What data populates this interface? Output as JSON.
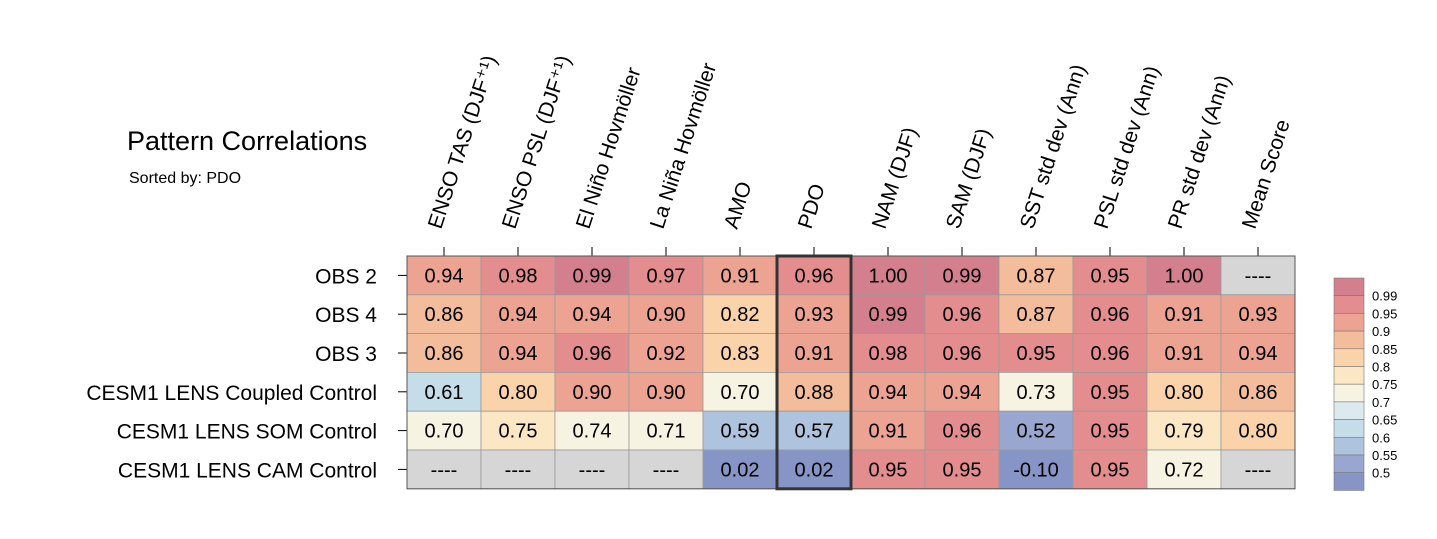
{
  "chart_data": {
    "type": "heatmap",
    "title": "Pattern Correlations",
    "subtitle": "Sorted by: PDO",
    "columns": [
      "ENSO TAS (DJF⁺¹)",
      "ENSO PSL (DJF⁺¹)",
      "El Niño Hovmöller",
      "La Niña Hovmöller",
      "AMO",
      "PDO",
      "NAM (DJF)",
      "SAM (DJF)",
      "SST std dev (Ann)",
      "PSL std dev (Ann)",
      "PR std dev (Ann)",
      "Mean Score"
    ],
    "rows": [
      "OBS 2",
      "OBS 4",
      "OBS 3",
      "CESM1 LENS Coupled Control",
      "CESM1 LENS SOM Control",
      "CESM1 LENS CAM Control"
    ],
    "cell_labels": [
      [
        "0.94",
        "0.98",
        "0.99",
        "0.97",
        "0.91",
        "0.96",
        "1.00",
        "0.99",
        "0.87",
        "0.95",
        "1.00",
        "----"
      ],
      [
        "0.86",
        "0.94",
        "0.94",
        "0.90",
        "0.82",
        "0.93",
        "0.99",
        "0.96",
        "0.87",
        "0.96",
        "0.91",
        "0.93"
      ],
      [
        "0.86",
        "0.94",
        "0.96",
        "0.92",
        "0.83",
        "0.91",
        "0.98",
        "0.96",
        "0.95",
        "0.96",
        "0.91",
        "0.94"
      ],
      [
        "0.61",
        "0.80",
        "0.90",
        "0.90",
        "0.70",
        "0.88",
        "0.94",
        "0.94",
        "0.73",
        "0.95",
        "0.80",
        "0.86"
      ],
      [
        "0.70",
        "0.75",
        "0.74",
        "0.71",
        "0.59",
        "0.57",
        "0.91",
        "0.96",
        "0.52",
        "0.95",
        "0.79",
        "0.80"
      ],
      [
        "----",
        "----",
        "----",
        "----",
        "0.02",
        "0.02",
        "0.95",
        "0.95",
        "-0.10",
        "0.95",
        "0.72",
        "----"
      ]
    ],
    "values": [
      [
        0.94,
        0.98,
        0.99,
        0.97,
        0.91,
        0.96,
        1.0,
        0.99,
        0.87,
        0.95,
        1.0,
        null
      ],
      [
        0.86,
        0.94,
        0.94,
        0.9,
        0.82,
        0.93,
        0.99,
        0.96,
        0.87,
        0.96,
        0.91,
        0.93
      ],
      [
        0.86,
        0.94,
        0.96,
        0.92,
        0.83,
        0.91,
        0.98,
        0.96,
        0.95,
        0.96,
        0.91,
        0.94
      ],
      [
        0.61,
        0.8,
        0.9,
        0.9,
        0.7,
        0.88,
        0.94,
        0.94,
        0.73,
        0.95,
        0.8,
        0.86
      ],
      [
        0.7,
        0.75,
        0.74,
        0.71,
        0.59,
        0.57,
        0.91,
        0.96,
        0.52,
        0.95,
        0.79,
        0.8
      ],
      [
        null,
        null,
        null,
        null,
        0.02,
        0.02,
        0.95,
        0.95,
        -0.1,
        0.95,
        0.72,
        null
      ]
    ],
    "highlighted_column": "PDO",
    "colorbar": {
      "labels": [
        "0.99",
        "0.95",
        "0.9",
        "0.85",
        "0.8",
        "0.75",
        "0.7",
        "0.65",
        "0.6",
        "0.55",
        "0.5"
      ],
      "bands_top_to_bottom": [
        "#d47f8e",
        "#e38d8e",
        "#eda392",
        "#f3bc9a",
        "#fad3aa",
        "#fbe7c3",
        "#f6f3e2",
        "#dbebed",
        "#c4dde9",
        "#aec3dd",
        "#98a6d0",
        "#8795c6"
      ],
      "bins": [
        0.99,
        0.95,
        0.9,
        0.85,
        0.8,
        0.75,
        0.7,
        0.65,
        0.6,
        0.55,
        0.5
      ],
      "missing_color": "#d6d6d6"
    }
  }
}
